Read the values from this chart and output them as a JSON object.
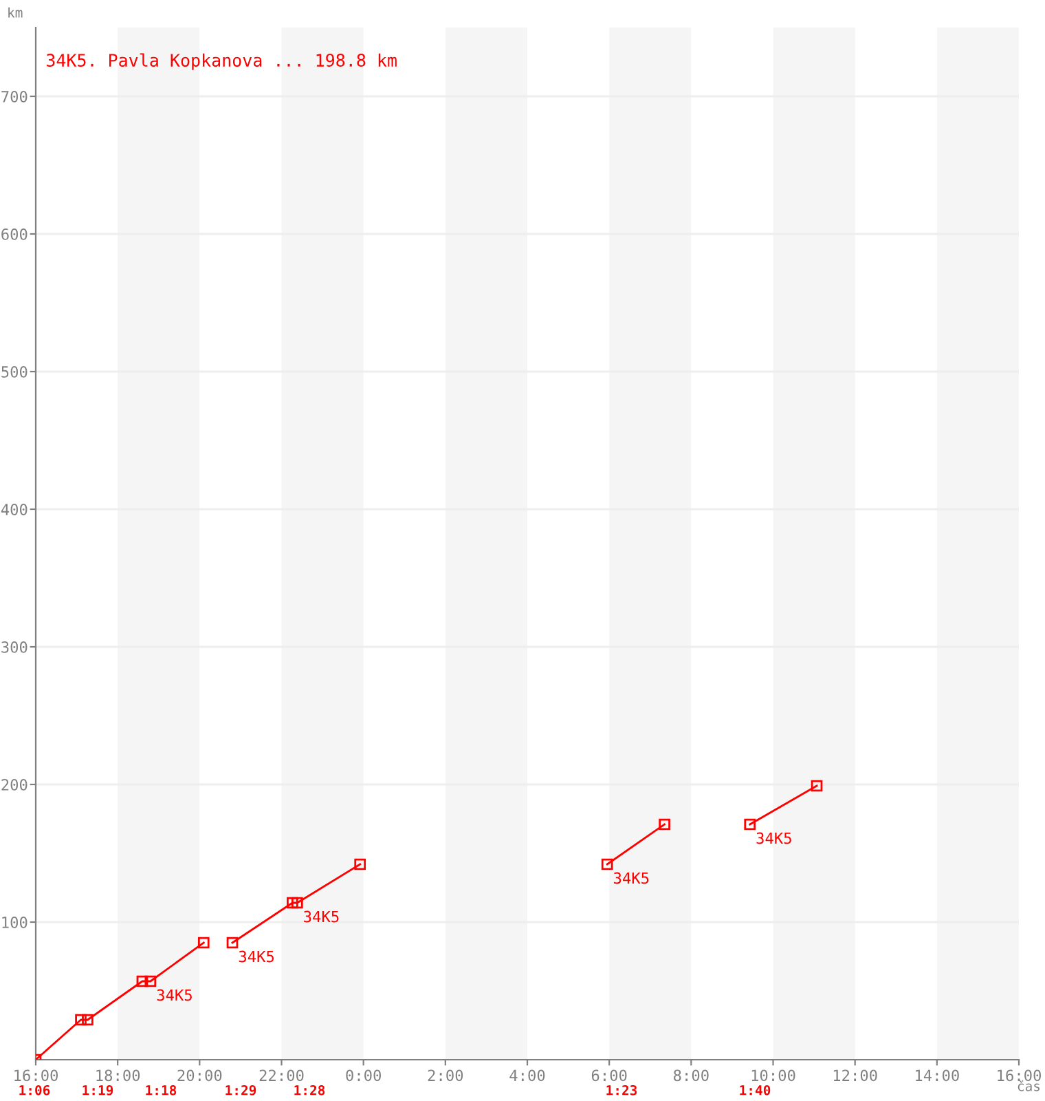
{
  "chart_data": {
    "type": "line",
    "title": "34K5. Pavla Kopkanova ... 198.8 km",
    "xlabel": "čas",
    "ylabel": "km",
    "series": [
      {
        "color": "#ff0000",
        "x": [
          "2000-01-01T16:00",
          "2000-01-01T17:06",
          "2000-01-01T17:16",
          "2000-01-01T18:36",
          "2000-01-01T18:48",
          "2000-01-01T20:06"
        ],
        "values": [
          0,
          29,
          29,
          57,
          57,
          85
        ]
      },
      {
        "color": "#ff0000",
        "x": [
          "2000-01-01T20:48",
          "2000-01-01T22:16",
          "2000-01-01T22:23",
          "2000-01-01T23:55"
        ],
        "values": [
          85,
          114,
          114,
          142
        ]
      },
      {
        "color": "#ff0000",
        "x": [
          "2000-01-02T05:57",
          "2000-01-02T07:21"
        ],
        "values": [
          142,
          171
        ]
      },
      {
        "color": "#ff0000",
        "x": [
          "2000-01-02T09:26",
          "2000-01-02T11:04"
        ],
        "values": [
          171,
          199
        ]
      }
    ],
    "marker": "square",
    "line_style": "solid",
    "grid": "y",
    "xlim": [
      "2000-01-01T16:00",
      "2000-01-02T16:00"
    ],
    "ylim": [
      0,
      750
    ],
    "xticks": [
      {
        "value": "2000-01-01T16:00",
        "label": "16:00"
      },
      {
        "value": "2000-01-01T18:00",
        "label": "18:00"
      },
      {
        "value": "2000-01-01T20:00",
        "label": "20:00"
      },
      {
        "value": "2000-01-01T22:00",
        "label": "22:00"
      },
      {
        "value": "2000-01-02T00:00",
        "label": "0:00"
      },
      {
        "value": "2000-01-02T02:00",
        "label": "2:00"
      },
      {
        "value": "2000-01-02T04:00",
        "label": "4:00"
      },
      {
        "value": "2000-01-02T06:00",
        "label": "6:00"
      },
      {
        "value": "2000-01-02T08:00",
        "label": "8:00"
      },
      {
        "value": "2000-01-02T10:00",
        "label": "10:00"
      },
      {
        "value": "2000-01-02T12:00",
        "label": "12:00"
      },
      {
        "value": "2000-01-02T14:00",
        "label": "14:00"
      },
      {
        "value": "2000-01-02T16:00",
        "label": "16:00"
      }
    ],
    "yticks": [
      100,
      200,
      300,
      400,
      500,
      600,
      700
    ],
    "bands": [
      {
        "axis": "x",
        "from": "2000-01-01T18:00",
        "to": "2000-01-01T20:00",
        "color": "#f5f5f5"
      },
      {
        "axis": "x",
        "from": "2000-01-01T22:00",
        "to": "2000-01-02T00:00",
        "color": "#f5f5f5"
      },
      {
        "axis": "x",
        "from": "2000-01-02T02:00",
        "to": "2000-01-02T04:00",
        "color": "#f5f5f5"
      },
      {
        "axis": "x",
        "from": "2000-01-02T06:00",
        "to": "2000-01-02T08:00",
        "color": "#f5f5f5"
      },
      {
        "axis": "x",
        "from": "2000-01-02T10:00",
        "to": "2000-01-02T12:00",
        "color": "#f5f5f5"
      },
      {
        "axis": "x",
        "from": "2000-01-02T14:00",
        "to": "2000-01-02T16:00",
        "color": "#f5f5f5"
      }
    ],
    "annotations": [
      {
        "text": "34K5",
        "x": "2000-01-01T18:48",
        "y": 57
      },
      {
        "text": "34K5",
        "x": "2000-01-01T20:48",
        "y": 85
      },
      {
        "text": "34K5",
        "x": "2000-01-01T22:23",
        "y": 114
      },
      {
        "text": "34K5",
        "x": "2000-01-02T05:57",
        "y": 142
      },
      {
        "text": "34K5",
        "x": "2000-01-02T09:26",
        "y": 171
      },
      "1:06",
      "1:19",
      "1:18",
      "1:29",
      "1:28",
      "1:23",
      "1:40"
    ]
  }
}
